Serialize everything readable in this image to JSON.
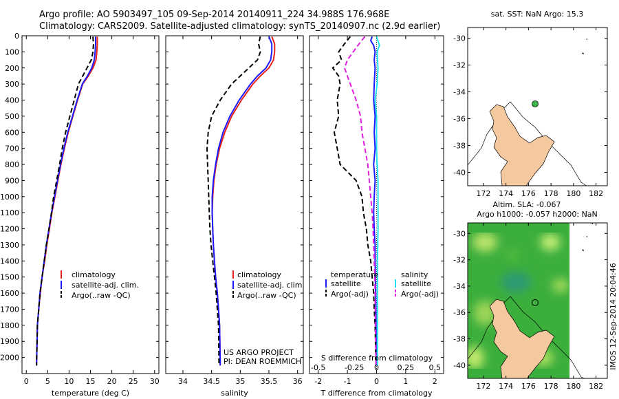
{
  "header": {
    "line1": "Argo profile: AO 5903497_105 09-Sep-2014 20140911_224 34.988S 176.968E",
    "line2": "Climatology: CARS2009. Satellite-adjusted climatology: synTS_20140907.nc (2.9d earlier)"
  },
  "side_stamp": "IMOS 12-Sep-2014 20:04:46",
  "project": {
    "line1": "US ARGO PROJECT",
    "line2": "PI: DEAN ROEMMICH"
  },
  "colors": {
    "red": "#e8211b",
    "blue": "#1a1aff",
    "black": "#000000",
    "cyan": "#22e0f0",
    "magenta": "#e020e0",
    "land": "#f5c9a0",
    "dot": "#3ab54a"
  },
  "chart_data": [
    {
      "type": "line",
      "name": "temperature-panel",
      "xlabel": "temperature (deg C)",
      "ylabel": "",
      "xlim": [
        -1,
        31
      ],
      "ylim": [
        2100,
        0
      ],
      "xticks": [
        0,
        5,
        10,
        15,
        20,
        25,
        30
      ],
      "yticks": [
        0,
        100,
        200,
        300,
        400,
        500,
        600,
        700,
        800,
        900,
        1000,
        1100,
        1200,
        1300,
        1400,
        1500,
        1600,
        1700,
        1800,
        1900,
        2000
      ],
      "legend": [
        "climatology",
        "satellite-adj. clim.",
        "Argo(..raw -QC)"
      ],
      "series": [
        {
          "name": "climatology",
          "color": "red",
          "dash": "",
          "x": [
            16.6,
            16.6,
            16.5,
            16.3,
            15.6,
            14.5,
            13.2,
            12.0,
            10.9,
            9.8,
            8.9,
            8.1,
            7.4,
            6.7,
            6.0,
            5.4,
            4.8,
            4.3,
            3.7,
            3.3,
            2.9,
            2.6,
            2.4
          ],
          "y": [
            5,
            50,
            100,
            150,
            200,
            250,
            300,
            400,
            500,
            600,
            700,
            800,
            900,
            1000,
            1100,
            1200,
            1300,
            1400,
            1500,
            1600,
            1700,
            1800,
            2050
          ]
        },
        {
          "name": "satellite-adj. clim.",
          "color": "blue",
          "dash": "",
          "x": [
            16.2,
            16.2,
            16.1,
            15.9,
            15.3,
            14.3,
            13.1,
            11.9,
            10.8,
            9.7,
            8.8,
            8.0,
            7.3,
            6.6,
            5.9,
            5.3,
            4.7,
            4.2,
            3.7,
            3.2,
            2.9,
            2.6,
            2.4
          ],
          "y": [
            5,
            50,
            100,
            150,
            200,
            250,
            300,
            400,
            500,
            600,
            700,
            800,
            900,
            1000,
            1100,
            1200,
            1300,
            1400,
            1500,
            1600,
            1700,
            1800,
            2050
          ]
        },
        {
          "name": "Argo(..raw -QC)",
          "color": "black",
          "dash": "7,4",
          "x": [
            15.6,
            15.7,
            15.6,
            15.2,
            14.2,
            13.2,
            12.2,
            11.2,
            10.2,
            9.2,
            8.4,
            7.8,
            7.1,
            6.4,
            5.9,
            5.3,
            4.7,
            4.2,
            3.7,
            3.2,
            2.9,
            2.6,
            2.4
          ],
          "y": [
            5,
            50,
            100,
            150,
            200,
            250,
            300,
            400,
            500,
            600,
            700,
            800,
            900,
            1000,
            1100,
            1200,
            1300,
            1400,
            1500,
            1600,
            1700,
            1800,
            2050
          ]
        }
      ]
    },
    {
      "type": "line",
      "name": "salinity-panel",
      "xlabel": "salinity",
      "ylabel": "",
      "xlim": [
        33.7,
        36.1
      ],
      "ylim": [
        2100,
        0
      ],
      "xticks": [
        34,
        34.5,
        35,
        35.5,
        36
      ],
      "legend": [
        "climatology",
        "satellite-adj. clim.",
        "Argo(..raw -QC)"
      ],
      "series": [
        {
          "name": "climatology",
          "color": "red",
          "dash": "",
          "x": [
            35.55,
            35.6,
            35.6,
            35.58,
            35.5,
            35.35,
            35.22,
            35.02,
            34.85,
            34.73,
            34.64,
            34.58,
            34.54,
            34.52,
            34.51,
            34.52,
            34.53,
            34.55,
            34.57,
            34.6,
            34.62,
            34.64,
            34.65
          ],
          "y": [
            5,
            50,
            100,
            150,
            200,
            250,
            300,
            400,
            500,
            600,
            700,
            800,
            900,
            1000,
            1100,
            1200,
            1300,
            1400,
            1500,
            1600,
            1700,
            1800,
            2050
          ]
        },
        {
          "name": "satellite-adj. clim.",
          "color": "blue",
          "dash": "",
          "x": [
            35.5,
            35.55,
            35.55,
            35.53,
            35.45,
            35.3,
            35.18,
            34.98,
            34.82,
            34.7,
            34.62,
            34.57,
            34.53,
            34.51,
            34.51,
            34.52,
            34.53,
            34.55,
            34.57,
            34.6,
            34.62,
            34.64,
            34.65
          ],
          "y": [
            5,
            50,
            100,
            150,
            200,
            250,
            300,
            400,
            500,
            600,
            700,
            800,
            900,
            1000,
            1100,
            1200,
            1300,
            1400,
            1500,
            1600,
            1700,
            1800,
            2050
          ]
        },
        {
          "name": "Argo(..raw -QC)",
          "color": "black",
          "dash": "7,4",
          "x": [
            35.35,
            35.32,
            35.35,
            35.3,
            35.15,
            35.0,
            34.85,
            34.65,
            34.5,
            34.44,
            34.42,
            34.43,
            34.44,
            34.45,
            34.46,
            34.47,
            34.49,
            34.52,
            34.55,
            34.58,
            34.6,
            34.62,
            34.63
          ],
          "y": [
            5,
            50,
            100,
            150,
            200,
            250,
            300,
            400,
            500,
            600,
            700,
            800,
            900,
            1000,
            1100,
            1200,
            1300,
            1400,
            1500,
            1600,
            1700,
            1800,
            2050
          ]
        }
      ]
    },
    {
      "type": "line",
      "name": "difference-panel",
      "xlabel": "T difference from climatology",
      "x2label": "S difference from climatology",
      "xlim": [
        -2.3,
        2.3
      ],
      "ylim": [
        2100,
        0
      ],
      "xticks": [
        -2,
        -1,
        0,
        1,
        2
      ],
      "x2ticks": [
        "-0.5",
        "-0.25",
        "0",
        "0.25",
        "0.5"
      ],
      "legend_headers": [
        "temperature",
        "salinity"
      ],
      "legend": [
        "satellite",
        "Argo(-adj)",
        "satellite",
        "Argo(-adj)"
      ],
      "series": [
        {
          "name": "temperature satellite",
          "color": "blue",
          "dash": "",
          "x": [
            -0.15,
            -0.2,
            -0.1,
            -0.05,
            -0.08,
            -0.05,
            -0.08,
            -0.1,
            -0.05,
            -0.08,
            -0.05,
            -0.1,
            -0.05,
            -0.08,
            -0.1,
            -0.08,
            -0.05,
            -0.05,
            -0.04,
            -0.03,
            -0.02,
            0
          ],
          "y": [
            5,
            30,
            60,
            100,
            150,
            200,
            300,
            400,
            500,
            600,
            700,
            800,
            900,
            1000,
            1100,
            1200,
            1300,
            1400,
            1500,
            1600,
            1800,
            2050
          ]
        },
        {
          "name": "temperature Argo(-adj)",
          "color": "black",
          "dash": "7,4",
          "x": [
            -0.9,
            -1.1,
            -1.3,
            -1.2,
            -1.5,
            -1.3,
            -1.25,
            -1.35,
            -1.3,
            -1.45,
            -1.35,
            -1.25,
            -0.7,
            -0.5,
            -0.45,
            -0.35,
            -0.3,
            -0.2,
            -0.15,
            -0.1,
            -0.08,
            -0.05,
            -0.02
          ],
          "y": [
            5,
            50,
            100,
            150,
            200,
            250,
            300,
            400,
            500,
            600,
            700,
            800,
            900,
            1000,
            1100,
            1200,
            1300,
            1400,
            1500,
            1600,
            1700,
            1800,
            2050
          ]
        },
        {
          "name": "salinity satellite",
          "color": "cyan",
          "dash": "",
          "x": [
            0.0,
            0.1,
            0.02,
            0.05,
            0.02,
            -0.05,
            0.0,
            0.0,
            0.0,
            0.02,
            0.05,
            0.05,
            0.05,
            0.05,
            0.03,
            0.03,
            0.03
          ],
          "y": [
            5,
            60,
            100,
            200,
            300,
            400,
            500,
            600,
            700,
            800,
            900,
            1000,
            1100,
            1200,
            1400,
            1700,
            2050
          ]
        },
        {
          "name": "salinity Argo(-adj)",
          "color": "magenta",
          "dash": "7,4",
          "x": [
            -0.4,
            -0.6,
            -0.8,
            -1.0,
            -1.1,
            -0.9,
            -0.7,
            -0.55,
            -0.5,
            -0.4,
            -0.3,
            -0.25,
            -0.2,
            -0.15,
            -0.12,
            -0.1,
            -0.08,
            -0.06,
            -0.05,
            -0.04,
            -0.02
          ],
          "y": [
            5,
            50,
            100,
            150,
            200,
            300,
            400,
            500,
            600,
            700,
            800,
            900,
            1000,
            1100,
            1200,
            1300,
            1400,
            1500,
            1600,
            1800,
            2050
          ]
        }
      ]
    },
    {
      "type": "map",
      "name": "sst-map",
      "title": "sat. SST: NaN Argo: 15.3",
      "xlim": [
        170.6,
        183.0
      ],
      "ylim": [
        -41,
        -29.2
      ],
      "xticks": [
        172,
        174,
        176,
        178,
        180,
        182
      ],
      "yticks": [
        -30,
        -32,
        -34,
        -36,
        -38,
        -40
      ],
      "float_position": {
        "lon": 176.968,
        "lat": -34.988
      }
    },
    {
      "type": "map",
      "name": "sla-map",
      "title_line1": "Altim. SLA: -0.067",
      "title_line2": "Argo h1000: -0.057 h2000: NaN",
      "xlim": [
        170.6,
        183.0
      ],
      "ylim": [
        -41,
        -29.2
      ],
      "xticks": [
        172,
        174,
        176,
        178,
        180,
        182
      ],
      "yticks": [
        -30,
        -32,
        -34,
        -36,
        -38,
        -40
      ],
      "float_position": {
        "lon": 176.968,
        "lat": -34.988
      }
    }
  ]
}
